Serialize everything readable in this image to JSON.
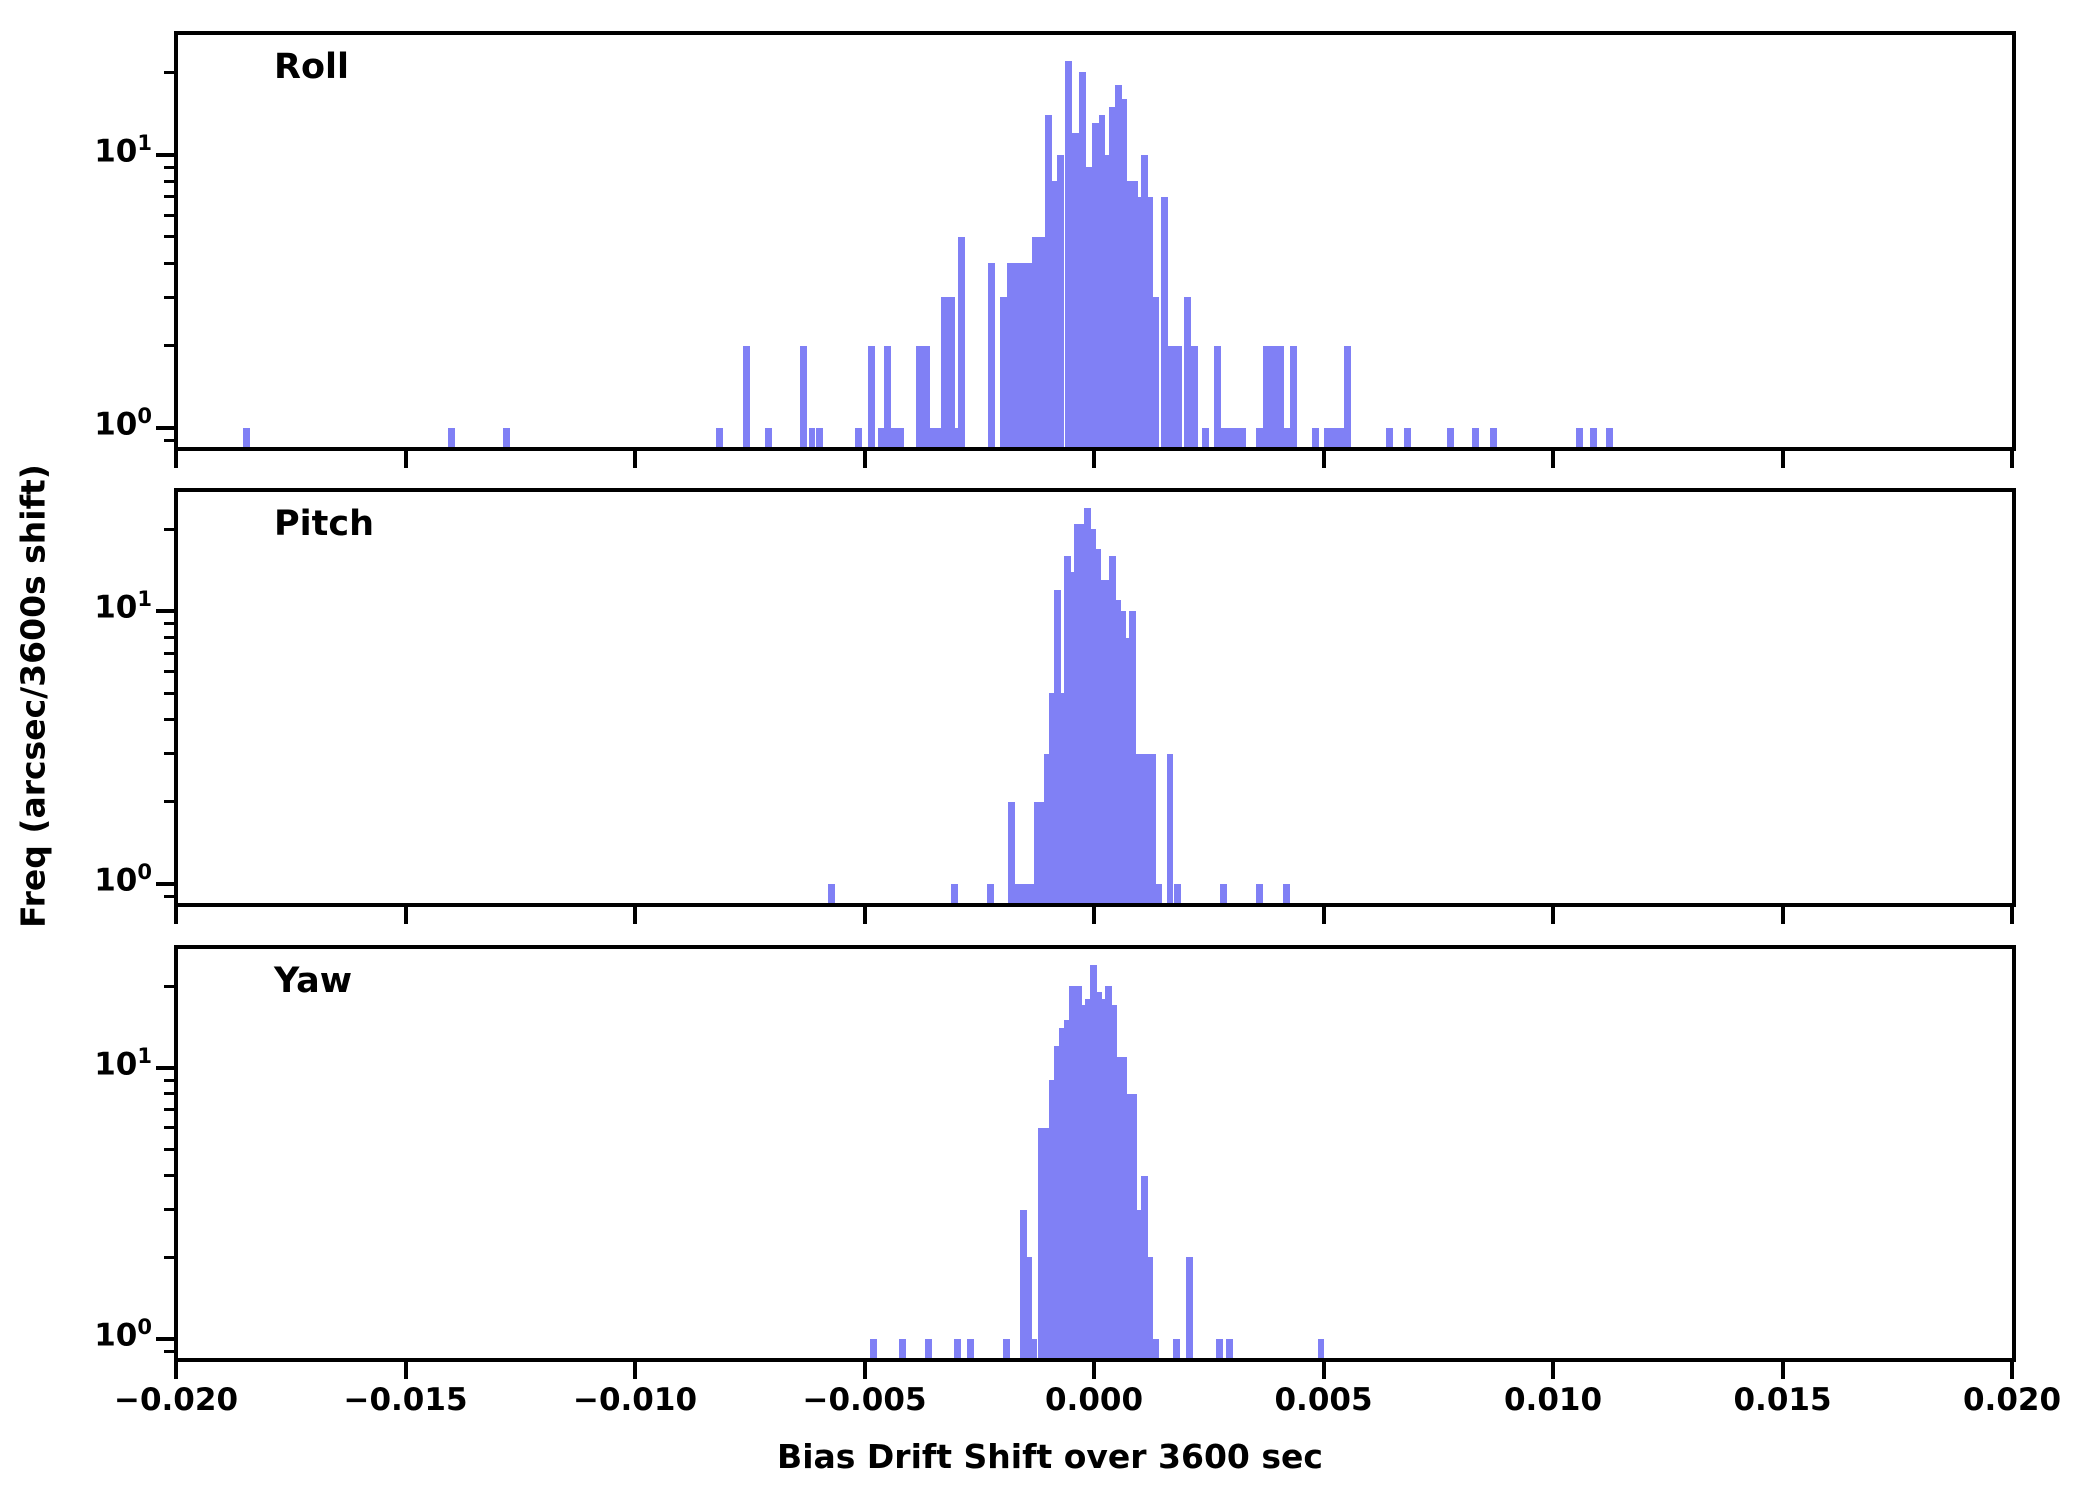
{
  "chart_data": {
    "type": "histogram",
    "xlabel": "Bias Drift Shift over 3600 sec",
    "ylabel": "Freq (arcsec/3600s shift)",
    "x_range": [
      -0.02,
      0.02
    ],
    "y_scale": "log",
    "y_range": [
      0.85,
      27.4
    ],
    "bin_width": 0.00015,
    "bar_color": "#8080F5",
    "grid": false,
    "legend": false,
    "x_ticks": [
      {
        "value": -0.02,
        "label": "−0.020"
      },
      {
        "value": -0.015,
        "label": "−0.015"
      },
      {
        "value": -0.01,
        "label": "−0.010"
      },
      {
        "value": -0.005,
        "label": "−0.005"
      },
      {
        "value": 0.0,
        "label": "0.000"
      },
      {
        "value": 0.005,
        "label": "0.005"
      },
      {
        "value": 0.01,
        "label": "0.010"
      },
      {
        "value": 0.015,
        "label": "0.015"
      },
      {
        "value": 0.02,
        "label": "0.020"
      }
    ],
    "y_major_ticks": [
      {
        "value": 10,
        "base": "10",
        "exp": "1"
      },
      {
        "value": 1,
        "base": "10",
        "exp": "0"
      }
    ],
    "y_minor_ticks": [
      0.9,
      2,
      3,
      4,
      5,
      6,
      7,
      8,
      9,
      20
    ],
    "panels": [
      {
        "label": "Roll",
        "bars": [
          [
            -0.01854,
            1
          ],
          [
            -0.01407,
            1
          ],
          [
            -0.01287,
            1
          ],
          [
            -0.00824,
            1
          ],
          [
            -0.00765,
            2
          ],
          [
            -0.00717,
            1
          ],
          [
            -0.0064,
            2
          ],
          [
            -0.00622,
            1
          ],
          [
            -0.00605,
            1
          ],
          [
            -0.0052,
            1
          ],
          [
            -0.00492,
            2
          ],
          [
            -0.00471,
            1
          ],
          [
            -0.00458,
            2
          ],
          [
            -0.00443,
            1
          ],
          [
            -0.00428,
            1
          ],
          [
            -0.00388,
            2
          ],
          [
            -0.00373,
            2
          ],
          [
            -0.00364,
            1
          ],
          [
            -0.00349,
            1
          ],
          [
            -0.00341,
            1
          ],
          [
            -0.00333,
            3
          ],
          [
            -0.00318,
            3
          ],
          [
            -0.00309,
            1
          ],
          [
            -0.00296,
            5
          ],
          [
            -0.00231,
            4
          ],
          [
            -0.00204,
            3
          ],
          [
            -0.0019,
            4
          ],
          [
            -0.00175,
            4
          ],
          [
            -0.0016,
            4
          ],
          [
            -0.00146,
            4
          ],
          [
            -0.00136,
            5
          ],
          [
            -0.00121,
            5
          ],
          [
            -0.00107,
            14
          ],
          [
            -0.00091,
            8
          ],
          [
            -0.0008,
            10
          ],
          [
            -0.00064,
            22
          ],
          [
            -0.00048,
            12
          ],
          [
            -0.00032,
            20
          ],
          [
            -0.00017,
            9
          ],
          [
            -5e-05,
            13
          ],
          [
            0.0001,
            14
          ],
          [
            0.00021,
            10
          ],
          [
            0.00032,
            15
          ],
          [
            0.00046,
            18
          ],
          [
            0.00057,
            16
          ],
          [
            0.00068,
            8
          ],
          [
            0.00081,
            8
          ],
          [
            0.00092,
            7
          ],
          [
            0.00103,
            10
          ],
          [
            0.00114,
            7
          ],
          [
            0.00126,
            3
          ],
          [
            0.00146,
            7
          ],
          [
            0.00161,
            2
          ],
          [
            0.00176,
            2
          ],
          [
            0.00196,
            3
          ],
          [
            0.00211,
            2
          ],
          [
            0.00236,
            1
          ],
          [
            0.00261,
            2
          ],
          [
            0.00275,
            1
          ],
          [
            0.0029,
            1
          ],
          [
            0.00304,
            1
          ],
          [
            0.00316,
            1
          ],
          [
            0.00354,
            1
          ],
          [
            0.00369,
            2
          ],
          [
            0.00384,
            2
          ],
          [
            0.00398,
            2
          ],
          [
            0.00412,
            1
          ],
          [
            0.00427,
            2
          ],
          [
            0.00476,
            1
          ],
          [
            0.005,
            1
          ],
          [
            0.00515,
            1
          ],
          [
            0.00529,
            1
          ],
          [
            0.00544,
            2
          ],
          [
            0.00637,
            1
          ],
          [
            0.00676,
            1
          ],
          [
            0.0077,
            1
          ],
          [
            0.00824,
            1
          ],
          [
            0.00863,
            1
          ],
          [
            0.0105,
            1
          ],
          [
            0.01081,
            1
          ],
          [
            0.01115,
            1
          ]
        ]
      },
      {
        "label": "Pitch",
        "bars": [
          [
            -0.0058,
            1
          ],
          [
            -0.00311,
            1
          ],
          [
            -0.00233,
            1
          ],
          [
            -0.00187,
            2
          ],
          [
            -0.00172,
            1
          ],
          [
            -0.00157,
            1
          ],
          [
            -0.00143,
            1
          ],
          [
            -0.00131,
            2
          ],
          [
            -0.0012,
            2
          ],
          [
            -0.00109,
            3
          ],
          [
            -0.00098,
            5
          ],
          [
            -0.00087,
            12
          ],
          [
            -0.00077,
            5
          ],
          [
            -0.00065,
            16
          ],
          [
            -0.00054,
            14
          ],
          [
            -0.00044,
            21
          ],
          [
            -0.00033,
            21
          ],
          [
            -0.00022,
            24
          ],
          [
            -0.00011,
            20
          ],
          [
            0.0,
            17
          ],
          [
            0.00011,
            13
          ],
          [
            0.00022,
            13
          ],
          [
            0.00033,
            16
          ],
          [
            0.00044,
            11
          ],
          [
            0.00055,
            10
          ],
          [
            0.00066,
            8
          ],
          [
            0.00077,
            10
          ],
          [
            0.0009,
            3
          ],
          [
            0.00105,
            3
          ],
          [
            0.0012,
            3
          ],
          [
            0.00133,
            1
          ],
          [
            0.00158,
            3
          ],
          [
            0.00174,
            1
          ],
          [
            0.00274,
            1
          ],
          [
            0.00354,
            1
          ],
          [
            0.00411,
            1
          ]
        ]
      },
      {
        "label": "Yaw",
        "bars": [
          [
            -0.00487,
            1
          ],
          [
            -0.00424,
            1
          ],
          [
            -0.00369,
            1
          ],
          [
            -0.00305,
            1
          ],
          [
            -0.00276,
            1
          ],
          [
            -0.00198,
            1
          ],
          [
            -0.00161,
            3
          ],
          [
            -0.0015,
            2
          ],
          [
            -0.00139,
            1
          ],
          [
            -0.00122,
            6
          ],
          [
            -0.00109,
            6
          ],
          [
            -0.00098,
            9
          ],
          [
            -0.00087,
            12
          ],
          [
            -0.00076,
            14
          ],
          [
            -0.00065,
            15
          ],
          [
            -0.00054,
            20
          ],
          [
            -0.00041,
            20
          ],
          [
            -0.0003,
            17
          ],
          [
            -0.0002,
            18
          ],
          [
            -9e-05,
            24
          ],
          [
            2e-05,
            19
          ],
          [
            0.00013,
            18
          ],
          [
            0.00024,
            20
          ],
          [
            0.00035,
            17
          ],
          [
            0.00046,
            11
          ],
          [
            0.00057,
            11
          ],
          [
            0.00068,
            8
          ],
          [
            0.00079,
            8
          ],
          [
            0.00092,
            3
          ],
          [
            0.00103,
            4
          ],
          [
            0.00114,
            2
          ],
          [
            0.00126,
            1
          ],
          [
            0.00172,
            1
          ],
          [
            0.00201,
            2
          ],
          [
            0.00266,
            1
          ],
          [
            0.00288,
            1
          ],
          [
            0.00487,
            1
          ]
        ]
      }
    ]
  }
}
